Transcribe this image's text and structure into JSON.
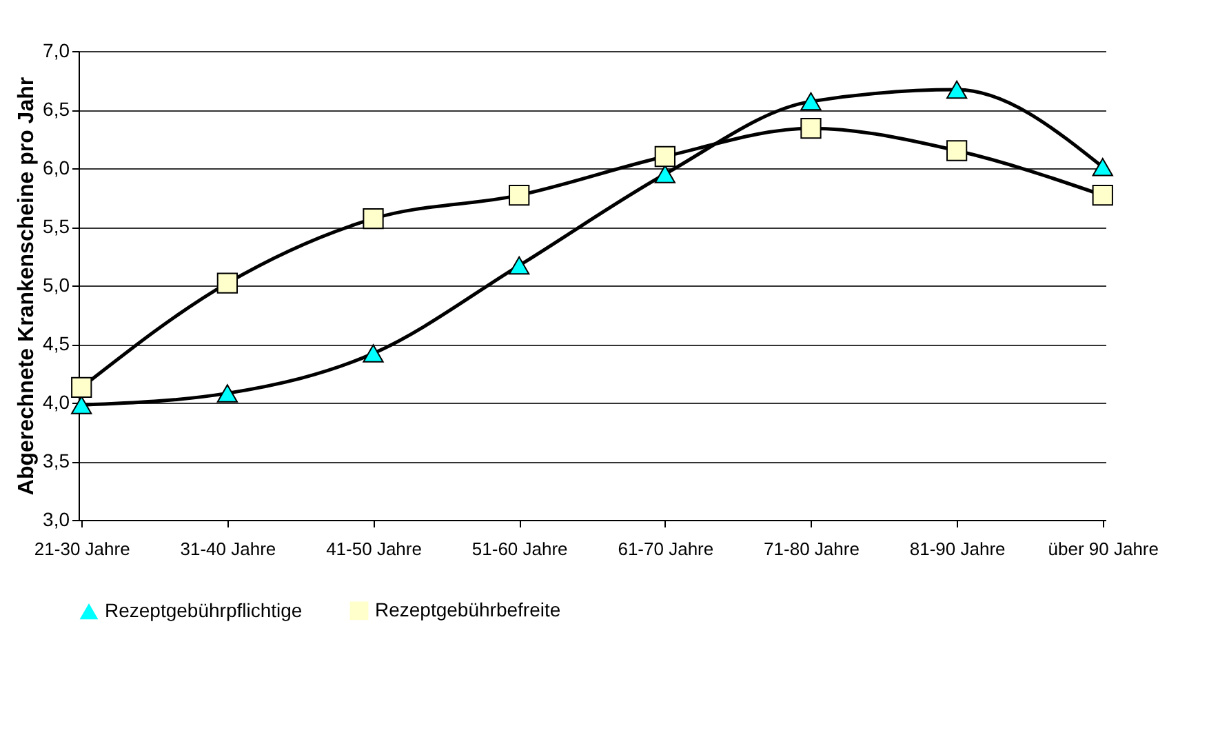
{
  "chart_data": {
    "type": "line",
    "ylabel": "Abgerechnete Krankenscheine pro Jahr",
    "categories": [
      "21-30 Jahre",
      "31-40 Jahre",
      "41-50 Jahre",
      "51-60 Jahre",
      "61-70 Jahre",
      "71-80 Jahre",
      "81-90 Jahre",
      "über 90 Jahre"
    ],
    "series": [
      {
        "name": "Rezeptgebührpflichtige",
        "color": "#00ffff",
        "marker": "triangle",
        "values": [
          3.98,
          4.08,
          4.42,
          5.17,
          5.95,
          6.57,
          6.67,
          6.01
        ]
      },
      {
        "name": "Rezeptgebührbefreite",
        "color": "#ffffcc",
        "marker": "square",
        "values": [
          4.13,
          5.02,
          5.57,
          5.77,
          6.1,
          6.34,
          6.15,
          5.77
        ]
      }
    ],
    "ylim": [
      3,
      7
    ],
    "yticks": [
      {
        "value": 3,
        "label": "3,0"
      },
      {
        "value": 3.5,
        "label": "3,5"
      },
      {
        "value": 4,
        "label": "4,0"
      },
      {
        "value": 4.5,
        "label": "4,5"
      },
      {
        "value": 5,
        "label": "5,0"
      },
      {
        "value": 5.5,
        "label": "5,5"
      },
      {
        "value": 6,
        "label": "6,0"
      },
      {
        "value": 6.5,
        "label": "6,5"
      },
      {
        "value": 7,
        "label": "7,0"
      }
    ],
    "grid": "y",
    "legend": "bottom",
    "line_style": "solid"
  }
}
